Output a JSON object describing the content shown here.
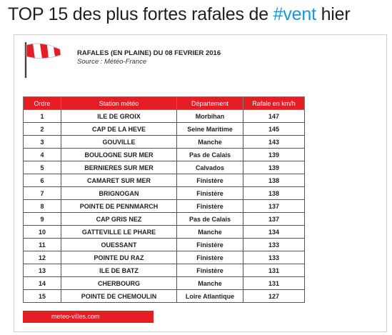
{
  "tweet": {
    "title_prefix": "TOP 15 des plus fortes rafales de ",
    "hashtag": "#vent",
    "title_suffix": " hier",
    "hashtag_color": "#1b95e0"
  },
  "card": {
    "icon": "windsock-icon",
    "title": "RAFALES (EN PLAINE) DU 08 FEVRIER 2016",
    "source": "Source : Météo-France",
    "accent_color": "#e51e25",
    "footer_link": "meteo-villes.com"
  },
  "table": {
    "headers": {
      "rank": "Ordre",
      "station": "Station météo",
      "department": "Département",
      "gust": "Rafale en km/h"
    },
    "rows": [
      {
        "rank": "1",
        "station": "ILE DE GROIX",
        "department": "Morbihan",
        "gust": "147"
      },
      {
        "rank": "2",
        "station": "CAP DE LA HEVE",
        "department": "Seine Maritime",
        "gust": "145"
      },
      {
        "rank": "3",
        "station": "GOUVILLE",
        "department": "Manche",
        "gust": "143"
      },
      {
        "rank": "4",
        "station": "BOULOGNE SUR MER",
        "department": "Pas de Calais",
        "gust": "139"
      },
      {
        "rank": "5",
        "station": "BERNIERES SUR MER",
        "department": "Calvados",
        "gust": "139"
      },
      {
        "rank": "6",
        "station": "CAMARET SUR MER",
        "department": "Finistère",
        "gust": "138"
      },
      {
        "rank": "7",
        "station": "BRIGNOGAN",
        "department": "Finistère",
        "gust": "138"
      },
      {
        "rank": "8",
        "station": "POINTE DE PENNMARCH",
        "department": "Finistère",
        "gust": "137"
      },
      {
        "rank": "9",
        "station": "CAP GRIS NEZ",
        "department": "Pas de Calais",
        "gust": "137"
      },
      {
        "rank": "10",
        "station": "GATTEVILLE LE PHARE",
        "department": "Manche",
        "gust": "134"
      },
      {
        "rank": "11",
        "station": "OUESSANT",
        "department": "Finistère",
        "gust": "133"
      },
      {
        "rank": "12",
        "station": "POINTE DU RAZ",
        "department": "Finistère",
        "gust": "133"
      },
      {
        "rank": "13",
        "station": "ILE DE BATZ",
        "department": "Finistère",
        "gust": "131"
      },
      {
        "rank": "14",
        "station": "CHERBOURG",
        "department": "Manche",
        "gust": "131"
      },
      {
        "rank": "15",
        "station": "POINTE DE CHEMOULIN",
        "department": "Loire Atlantique",
        "gust": "127"
      }
    ]
  }
}
